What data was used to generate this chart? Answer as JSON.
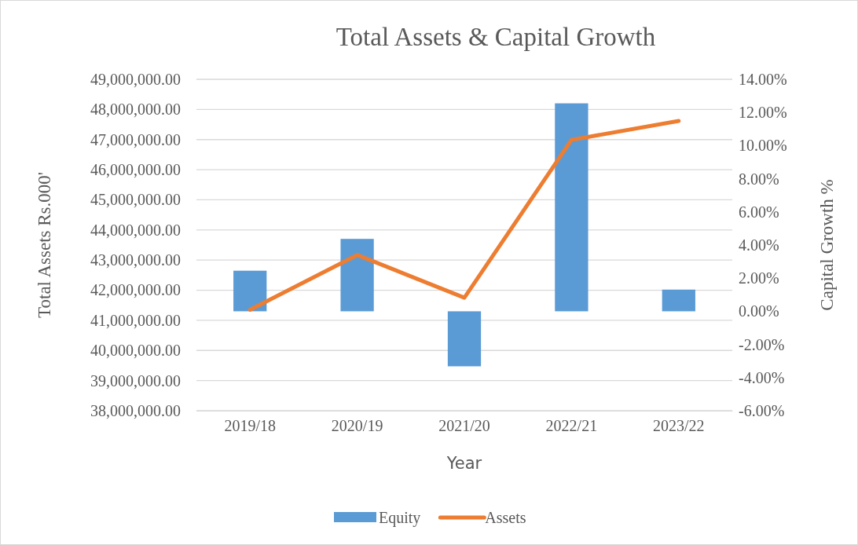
{
  "chart_data": {
    "type": "bar",
    "title": "Total Assets & Capital Growth",
    "xlabel": "Year",
    "ylabel": "Total Assets Rs.000'",
    "y2label": "Capital Growth %",
    "categories": [
      "2019/18",
      "2020/19",
      "2021/20",
      "2022/21",
      "2023/22"
    ],
    "series": [
      {
        "name": "Equity",
        "axis": "y2",
        "color": "#5b9bd5",
        "values": [
          2.45,
          4.37,
          -3.32,
          12.55,
          1.31
        ]
      },
      {
        "name": "Assets",
        "type": "line",
        "axis": "y",
        "color": "#ed7d31",
        "values": [
          41350000,
          43170000,
          41750000,
          46990000,
          47620000
        ]
      }
    ],
    "ylim": [
      38000000,
      49000000
    ],
    "yticks": [
      {
        "value": 38000000,
        "label": "38,000,000.00"
      },
      {
        "value": 39000000,
        "label": "39,000,000.00"
      },
      {
        "value": 40000000,
        "label": "40,000,000.00"
      },
      {
        "value": 41000000,
        "label": "41,000,000.00"
      },
      {
        "value": 42000000,
        "label": "42,000,000.00"
      },
      {
        "value": 43000000,
        "label": "43,000,000.00"
      },
      {
        "value": 44000000,
        "label": "44,000,000.00"
      },
      {
        "value": 45000000,
        "label": "45,000,000.00"
      },
      {
        "value": 46000000,
        "label": "46,000,000.00"
      },
      {
        "value": 47000000,
        "label": "47,000,000.00"
      },
      {
        "value": 48000000,
        "label": "48,000,000.00"
      },
      {
        "value": 49000000,
        "label": "49,000,000.00"
      }
    ],
    "y2lim": [
      -6,
      14
    ],
    "y2ticks": [
      {
        "value": -6,
        "label": "-6.00%"
      },
      {
        "value": -4,
        "label": "-4.00%"
      },
      {
        "value": -2,
        "label": "-2.00%"
      },
      {
        "value": 0,
        "label": "0.00%"
      },
      {
        "value": 2,
        "label": "2.00%"
      },
      {
        "value": 4,
        "label": "4.00%"
      },
      {
        "value": 6,
        "label": "6.00%"
      },
      {
        "value": 8,
        "label": "8.00%"
      },
      {
        "value": 10,
        "label": "10.00%"
      },
      {
        "value": 12,
        "label": "12.00%"
      },
      {
        "value": 14,
        "label": "14.00%"
      }
    ],
    "grid": "y",
    "legend": "bottom",
    "line_style": "solid",
    "marker": "none"
  }
}
